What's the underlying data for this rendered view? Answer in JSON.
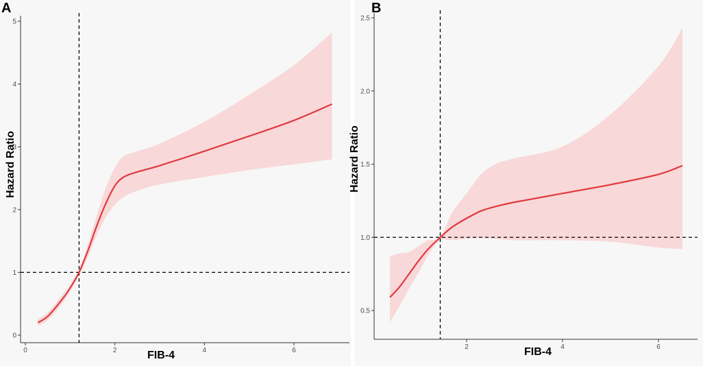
{
  "chart_data": [
    {
      "panel": "A",
      "type": "line",
      "title": "",
      "xlabel": "FIB-4",
      "ylabel": "Hazard Ratio",
      "xlim": [
        0,
        7.2
      ],
      "ylim": [
        0,
        5
      ],
      "xticks": [
        0,
        2,
        4,
        6
      ],
      "yticks": [
        0,
        1,
        2,
        3,
        4,
        5
      ],
      "reference_lines": {
        "x": 1.2,
        "y": 1
      },
      "grid": false,
      "colors": {
        "line": "#e0393e",
        "band": "#f9d8d9",
        "background": "#f7f7f7",
        "axis": "#333333"
      },
      "series": [
        {
          "name": "Hazard Ratio",
          "x": [
            0.28,
            0.5,
            0.8,
            1.0,
            1.2,
            1.4,
            1.6,
            1.8,
            2.0,
            2.2,
            2.5,
            3.0,
            4.0,
            5.0,
            6.0,
            6.85
          ],
          "y": [
            0.2,
            0.3,
            0.55,
            0.75,
            1.0,
            1.35,
            1.75,
            2.1,
            2.38,
            2.52,
            2.6,
            2.7,
            2.93,
            3.17,
            3.42,
            3.68
          ],
          "lower": [
            0.15,
            0.24,
            0.48,
            0.7,
            0.95,
            1.25,
            1.6,
            1.88,
            2.08,
            2.2,
            2.3,
            2.4,
            2.52,
            2.63,
            2.72,
            2.8
          ],
          "upper": [
            0.26,
            0.36,
            0.62,
            0.8,
            1.05,
            1.45,
            1.92,
            2.35,
            2.67,
            2.85,
            2.93,
            3.05,
            3.4,
            3.83,
            4.3,
            4.82
          ]
        }
      ]
    },
    {
      "panel": "B",
      "type": "line",
      "title": "",
      "xlabel": "FIB-4",
      "ylabel": "Hazard Ratio",
      "xlim": [
        0.25,
        6.85
      ],
      "ylim": [
        0.35,
        2.55
      ],
      "xticks": [
        2,
        4,
        6
      ],
      "yticks": [
        0.5,
        1.0,
        1.5,
        2.0,
        2.5
      ],
      "ytick_labels": [
        "0.5",
        "1.0",
        "1.5",
        "2.0",
        "2.5"
      ],
      "reference_lines": {
        "x": 1.45,
        "y": 1.0
      },
      "grid": false,
      "colors": {
        "line": "#e0393e",
        "band": "#f9d8d9",
        "background": "#f7f7f7",
        "axis": "#333333"
      },
      "series": [
        {
          "name": "Hazard Ratio",
          "x": [
            0.4,
            0.6,
            0.8,
            1.0,
            1.2,
            1.45,
            1.7,
            2.0,
            2.3,
            2.6,
            3.0,
            4.0,
            5.0,
            6.0,
            6.5
          ],
          "y": [
            0.59,
            0.66,
            0.75,
            0.84,
            0.92,
            1.0,
            1.07,
            1.13,
            1.18,
            1.21,
            1.24,
            1.3,
            1.36,
            1.43,
            1.49
          ],
          "lower": [
            0.42,
            0.53,
            0.65,
            0.76,
            0.88,
            0.98,
            0.98,
            0.99,
            0.995,
            0.99,
            0.98,
            0.98,
            0.97,
            0.93,
            0.92
          ],
          "upper": [
            0.87,
            0.89,
            0.9,
            0.94,
            0.98,
            1.0,
            1.17,
            1.3,
            1.43,
            1.5,
            1.54,
            1.62,
            1.84,
            2.17,
            2.43
          ]
        }
      ]
    }
  ],
  "panels": {
    "a": {
      "label": "A"
    },
    "b": {
      "label": "B"
    }
  }
}
